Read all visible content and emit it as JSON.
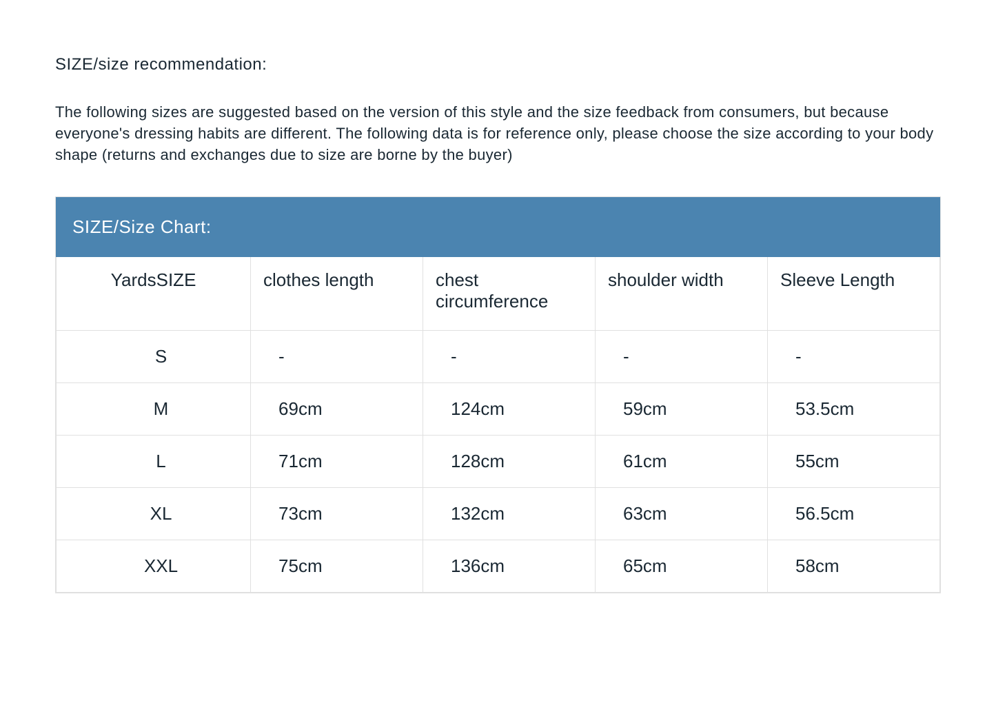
{
  "heading": "SIZE/size recommendation:",
  "description": "The following sizes are suggested based on the version of this style and the size feedback from consumers, but because everyone's dressing habits are different. The following data is for reference only, please choose the size according to your body shape (returns and exchanges due to size are borne by the buyer)",
  "table": {
    "banner": "SIZE/Size Chart:",
    "banner_bg": "#4b84b0",
    "banner_color": "#ffffff",
    "border_color": "#e0e0e0",
    "text_color": "#1a2833",
    "columns": [
      "YardsSIZE",
      "clothes length",
      "chest circumference",
      "shoulder width",
      "Sleeve Length"
    ],
    "rows": [
      [
        "S",
        "-",
        "-",
        "-",
        "-"
      ],
      [
        "M",
        "69cm",
        "124cm",
        "59cm",
        "53.5cm"
      ],
      [
        "L",
        "71cm",
        "128cm",
        "61cm",
        "55cm"
      ],
      [
        "XL",
        "73cm",
        "132cm",
        "63cm",
        "56.5cm"
      ],
      [
        "XXL",
        "75cm",
        "136cm",
        "65cm",
        "58cm"
      ]
    ]
  }
}
